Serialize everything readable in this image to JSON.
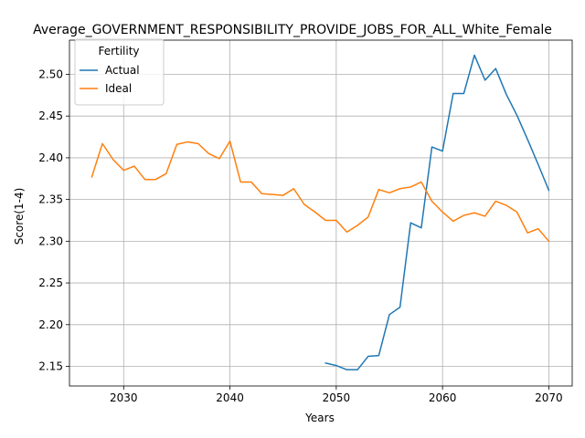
{
  "chart_data": {
    "type": "line",
    "title": "Average_GOVERNMENT_RESPONSIBILITY_PROVIDE_JOBS_FOR_ALL_White_Female",
    "xlabel": "Years",
    "ylabel": "Score(1-4)",
    "xlim": [
      2024.9,
      2072.2
    ],
    "ylim": [
      2.1265,
      2.541
    ],
    "xticks": [
      2030,
      2040,
      2050,
      2060,
      2070
    ],
    "xtick_labels": [
      "2030",
      "2040",
      "2050",
      "2060",
      "2070"
    ],
    "yticks": [
      2.15,
      2.2,
      2.25,
      2.3,
      2.35,
      2.4,
      2.45,
      2.5
    ],
    "ytick_labels": [
      "2.15",
      "2.20",
      "2.25",
      "2.30",
      "2.35",
      "2.40",
      "2.45",
      "2.50"
    ],
    "grid": true,
    "legend": {
      "title": "Fertility",
      "placement": "upper-left"
    },
    "series": [
      {
        "name": "Actual",
        "color": "#1f77b4",
        "x": [
          2049,
          2050,
          2051,
          2052,
          2053,
          2054,
          2055,
          2056,
          2057,
          2058,
          2059,
          2060,
          2061,
          2062,
          2063,
          2064,
          2065,
          2066,
          2067,
          2068,
          2069,
          2070
        ],
        "values": [
          2.154,
          2.151,
          2.146,
          2.146,
          2.162,
          2.163,
          2.212,
          2.221,
          2.322,
          2.316,
          2.413,
          2.408,
          2.477,
          2.477,
          2.523,
          2.493,
          2.507,
          2.476,
          2.451,
          2.422,
          2.392,
          2.361
        ]
      },
      {
        "name": "Ideal",
        "color": "#ff7f0e",
        "x": [
          2027,
          2028,
          2029,
          2030,
          2031,
          2032,
          2033,
          2034,
          2035,
          2036,
          2037,
          2038,
          2039,
          2040,
          2041,
          2042,
          2043,
          2044,
          2045,
          2046,
          2047,
          2048,
          2049,
          2050,
          2051,
          2052,
          2053,
          2054,
          2055,
          2056,
          2057,
          2058,
          2059,
          2060,
          2061,
          2062,
          2063,
          2064,
          2065,
          2066,
          2067,
          2068,
          2069,
          2070
        ],
        "values": [
          2.377,
          2.417,
          2.398,
          2.385,
          2.39,
          2.374,
          2.374,
          2.381,
          2.416,
          2.419,
          2.417,
          2.405,
          2.399,
          2.42,
          2.371,
          2.371,
          2.357,
          2.356,
          2.355,
          2.363,
          2.344,
          2.335,
          2.325,
          2.325,
          2.311,
          2.319,
          2.329,
          2.362,
          2.358,
          2.363,
          2.365,
          2.371,
          2.348,
          2.335,
          2.324,
          2.331,
          2.334,
          2.33,
          2.348,
          2.343,
          2.335,
          2.31,
          2.315,
          2.3
        ]
      }
    ]
  }
}
